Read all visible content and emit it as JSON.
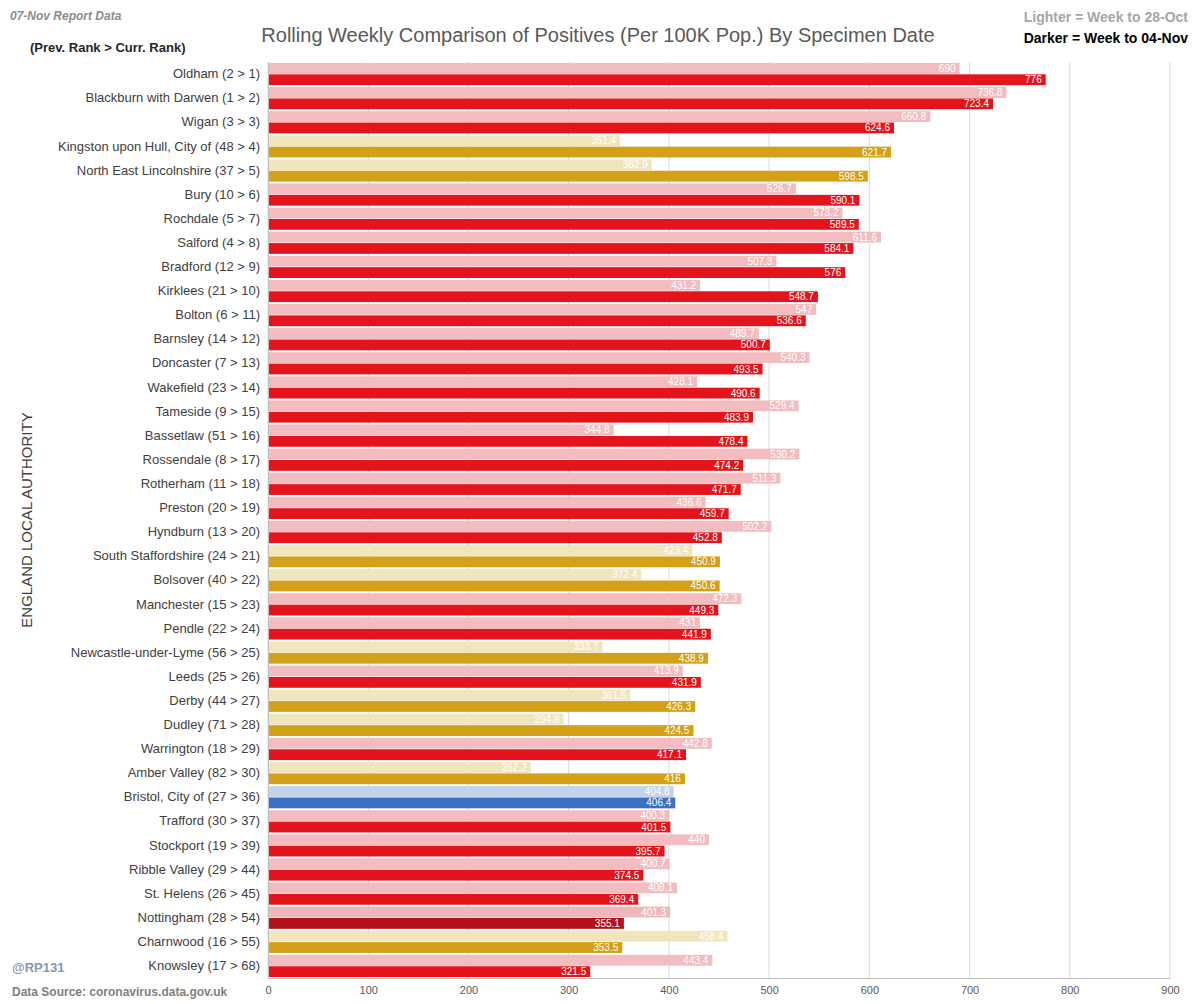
{
  "chart_data": {
    "type": "bar",
    "orientation": "horizontal",
    "title": "Rolling Weekly Comparison of Positives  (Per 100K Pop.) By Specimen Date",
    "subtitle": "(Prev. Rank > Curr. Rank)",
    "y_label": "ENGLAND LOCAL AUTHORITY",
    "annotations": [
      "07-Nov Report Data",
      "@RP131",
      "Data Source: coronavirus.data.gov.uk"
    ],
    "categories": [
      "Oldham (2 > 1)",
      "Blackburn with Darwen (1 > 2)",
      "Wigan (3 > 3)",
      "Kingston upon Hull, City of (48 > 4)",
      "North East Lincolnshire (37 > 5)",
      "Bury (10 > 6)",
      "Rochdale (5 > 7)",
      "Salford (4 > 8)",
      "Bradford (12 > 9)",
      "Kirklees (21 > 10)",
      "Bolton (6 > 11)",
      "Barnsley (14 > 12)",
      "Doncaster (7 > 13)",
      "Wakefield (23 > 14)",
      "Tameside (9 > 15)",
      "Bassetlaw (51 > 16)",
      "Rossendale (8 > 17)",
      "Rotherham (11 > 18)",
      "Preston (20 > 19)",
      "Hyndburn (13 > 20)",
      "South Staffordshire (24 > 21)",
      "Bolsover (40 > 22)",
      "Manchester (15 > 23)",
      "Pendle (22 > 24)",
      "Newcastle-under-Lyme (56 > 25)",
      "Leeds (25 > 26)",
      "Derby (44 > 27)",
      "Dudley (71 > 28)",
      "Warrington (18 > 29)",
      "Amber Valley (82 > 30)",
      "Bristol, City of (27 > 36)",
      "Trafford (30 > 37)",
      "Stockport (19 > 39)",
      "Ribble Valley (29 > 44)",
      "St. Helens (26 > 45)",
      "Nottingham (28 > 54)",
      "Charnwood (16 > 55)",
      "Knowsley (17 > 68)"
    ],
    "series": [
      {
        "name": "Lighter =  Week to 28-Oct",
        "values": [
          690,
          736.8,
          660.8,
          351.4,
          382.9,
          526.7,
          573.2,
          611.6,
          507.3,
          431.2,
          547,
          489.7,
          540.3,
          428.1,
          529.4,
          344.8,
          530.2,
          511.3,
          436.6,
          502.2,
          423.4,
          372.4,
          472.3,
          431,
          333.7,
          413.9,
          361.5,
          294.8,
          442.8,
          262.2,
          404.8,
          400.3,
          440,
          400.7,
          408.1,
          401.3,
          458.4,
          443.4
        ],
        "colors": [
          "#f2bcc0",
          "#f2bcc0",
          "#f2bcc0",
          "#f1e5bd",
          "#f1e5bd",
          "#f2bcc0",
          "#f2bcc0",
          "#f2bcc0",
          "#f2bcc0",
          "#f2bcc0",
          "#f2bcc0",
          "#f2bcc0",
          "#f2bcc0",
          "#f2bcc0",
          "#f2bcc0",
          "#f2bcc0",
          "#f2bcc0",
          "#f2bcc0",
          "#f2bcc0",
          "#f2bcc0",
          "#f1e5bd",
          "#f1e5bd",
          "#f2bcc0",
          "#f2bcc0",
          "#f1e5bd",
          "#f2bcc0",
          "#f1e5bd",
          "#f1e5bd",
          "#f2bcc0",
          "#f1e5bd",
          "#c3d3ea",
          "#f2bcc0",
          "#f2bcc0",
          "#f2bcc0",
          "#f2bcc0",
          "#eeb8bb",
          "#f1e5bd",
          "#f2bcc0"
        ]
      },
      {
        "name": "Darker =  Week to 04-Nov",
        "values": [
          776,
          723.4,
          624.6,
          621.7,
          598.5,
          590.1,
          589.5,
          584.1,
          576,
          548.7,
          536.6,
          500.7,
          493.5,
          490.6,
          483.9,
          478.4,
          474.2,
          471.7,
          459.7,
          452.8,
          450.9,
          450.6,
          449.3,
          441.9,
          438.9,
          431.9,
          426.3,
          424.5,
          417.1,
          416,
          406.4,
          401.5,
          395.7,
          374.5,
          369.4,
          355.1,
          353.5,
          321.5
        ],
        "colors": [
          "#e3141b",
          "#e3141b",
          "#e3141b",
          "#d4a017",
          "#d4a017",
          "#e3141b",
          "#e3141b",
          "#e3141b",
          "#e3141b",
          "#e3141b",
          "#e3141b",
          "#e3141b",
          "#e3141b",
          "#e3141b",
          "#e3141b",
          "#e3141b",
          "#e3141b",
          "#e3141b",
          "#e3141b",
          "#e3141b",
          "#d4a017",
          "#d4a017",
          "#e3141b",
          "#e3141b",
          "#d4a017",
          "#e3141b",
          "#d4a017",
          "#d4a017",
          "#e3141b",
          "#d4a017",
          "#3d6fc2",
          "#e3141b",
          "#e3141b",
          "#e3141b",
          "#e3141b",
          "#b3121a",
          "#d4a017",
          "#e3141b"
        ]
      }
    ],
    "xlim": [
      0,
      900
    ],
    "xticks": [
      0,
      100,
      200,
      300,
      400,
      500,
      600,
      700,
      800,
      900
    ],
    "grid": true,
    "data_labels": true,
    "legend": "top-right"
  }
}
